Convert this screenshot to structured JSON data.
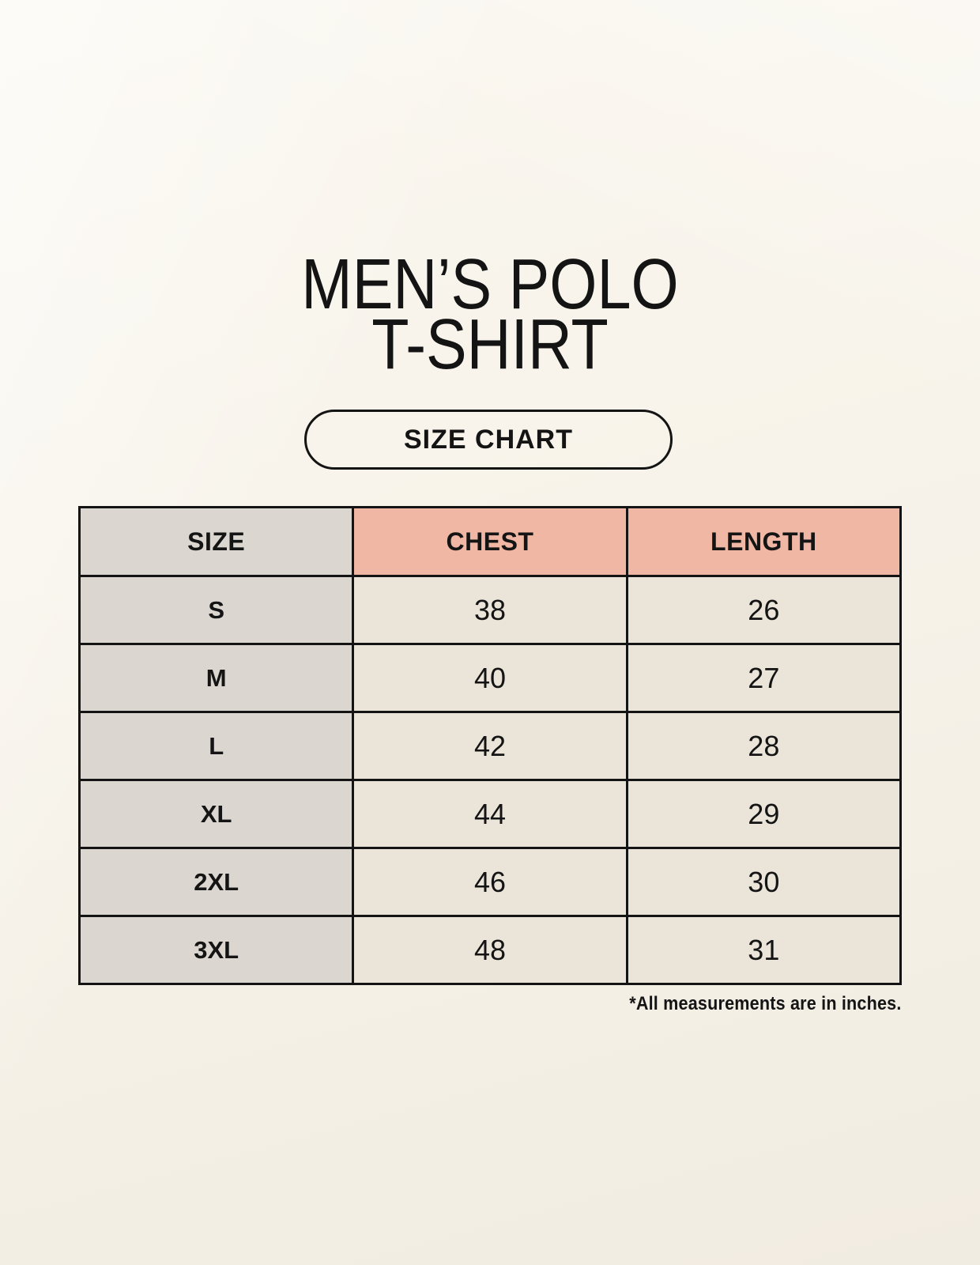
{
  "title": {
    "line1": "MEN’S POLO",
    "line2": "T-SHIRT"
  },
  "badge": {
    "label": "SIZE CHART"
  },
  "table": {
    "headers": {
      "size": "SIZE",
      "chest": "CHEST",
      "length": "LENGTH"
    },
    "rows": [
      {
        "size": "S",
        "chest": "38",
        "length": "26"
      },
      {
        "size": "M",
        "chest": "40",
        "length": "27"
      },
      {
        "size": "L",
        "chest": "42",
        "length": "28"
      },
      {
        "size": "XL",
        "chest": "44",
        "length": "29"
      },
      {
        "size": "2XL",
        "chest": "46",
        "length": "30"
      },
      {
        "size": "3XL",
        "chest": "48",
        "length": "31"
      }
    ]
  },
  "footnote": "*All measurements are in inches.",
  "colors": {
    "background": "#f7f3ea",
    "header_accent": "#efb7a4",
    "size_column": "#dcd6d0",
    "value_cell": "#eae4d9",
    "ink": "#141414"
  },
  "chart_data": {
    "type": "table",
    "title": "MEN’S POLO T-SHIRT",
    "subtitle": "SIZE CHART",
    "columns": [
      "SIZE",
      "CHEST",
      "LENGTH"
    ],
    "rows": [
      [
        "S",
        38,
        26
      ],
      [
        "M",
        40,
        27
      ],
      [
        "L",
        42,
        28
      ],
      [
        "XL",
        44,
        29
      ],
      [
        "2XL",
        46,
        30
      ],
      [
        "3XL",
        48,
        31
      ]
    ],
    "note": "*All measurements are in inches.",
    "units": "inches"
  }
}
